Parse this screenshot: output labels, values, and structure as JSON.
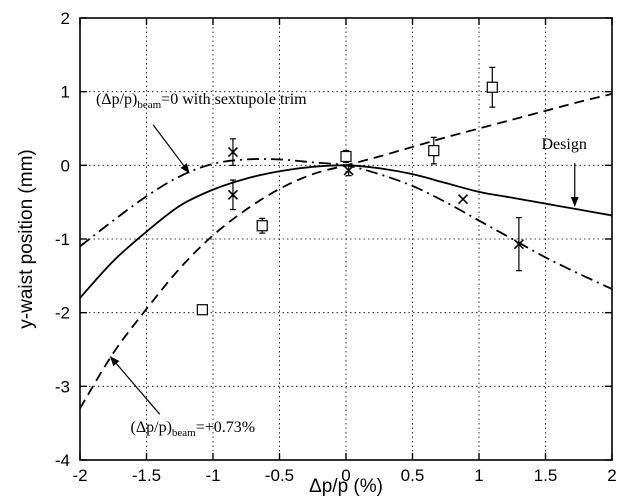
{
  "chart_data": {
    "type": "line",
    "xlabel": "Δp/p (%)",
    "ylabel": "y-waist position (mm)",
    "xlim": [
      -2,
      2
    ],
    "ylim": [
      -4,
      2
    ],
    "xticks": [
      -2,
      -1.5,
      -1,
      -0.5,
      0,
      0.5,
      1,
      1.5,
      2
    ],
    "xtick_labels": [
      "-2",
      "-1.5",
      "-1",
      "-0.5",
      "0",
      "0.5",
      "1",
      "1.5",
      "2"
    ],
    "yticks": [
      -4,
      -3,
      -2,
      -1,
      0,
      1,
      2
    ],
    "ytick_labels": [
      "-4",
      "-3",
      "-2",
      "-1",
      "0",
      "1",
      "2"
    ],
    "grid": true,
    "series": [
      {
        "style": "solid",
        "x": [
          -2,
          -1.75,
          -1.5,
          -1.25,
          -1,
          -0.75,
          -0.5,
          -0.25,
          0,
          0.25,
          0.5,
          0.75,
          1,
          1.25,
          1.5,
          1.75,
          2
        ],
        "y": [
          -1.8,
          -1.3,
          -0.9,
          -0.55,
          -0.33,
          -0.18,
          -0.08,
          -0.02,
          0,
          -0.04,
          -0.12,
          -0.24,
          -0.36,
          -0.44,
          -0.52,
          -0.6,
          -0.68
        ]
      },
      {
        "style": "dashed",
        "x": [
          -2,
          -1.75,
          -1.5,
          -1.25,
          -1,
          -0.75,
          -0.5,
          -0.25,
          0,
          0.25,
          0.5,
          0.75,
          1,
          1.25,
          1.5,
          1.75,
          2
        ],
        "y": [
          -3.3,
          -2.55,
          -1.95,
          -1.4,
          -0.95,
          -0.6,
          -0.32,
          -0.12,
          0,
          0.12,
          0.25,
          0.38,
          0.5,
          0.62,
          0.74,
          0.86,
          0.97
        ]
      },
      {
        "style": "dash-dot",
        "x": [
          -2,
          -1.75,
          -1.5,
          -1.25,
          -1,
          -0.75,
          -0.5,
          -0.25,
          0,
          0.25,
          0.5,
          0.75,
          1,
          1.25,
          1.5,
          1.75,
          2
        ],
        "y": [
          -1.1,
          -0.75,
          -0.42,
          -0.15,
          0.02,
          0.08,
          0.08,
          0.04,
          0,
          -0.12,
          -0.28,
          -0.5,
          -0.75,
          -1.0,
          -1.25,
          -1.47,
          -1.68
        ]
      }
    ],
    "points": [
      {
        "marker": "x",
        "x": -0.85,
        "y": 0.18,
        "err": 0.18
      },
      {
        "marker": "x",
        "x": -0.85,
        "y": -0.4,
        "err": 0.2
      },
      {
        "marker": "x",
        "x": 0.02,
        "y": -0.07,
        "err": 0.07
      },
      {
        "marker": "x",
        "x": 0.88,
        "y": -0.46,
        "err": 0
      },
      {
        "marker": "x",
        "x": 1.3,
        "y": -1.07,
        "err": 0.36
      },
      {
        "marker": "square",
        "x": -1.08,
        "y": -1.96,
        "err": 0
      },
      {
        "marker": "square",
        "x": -0.63,
        "y": -0.82,
        "err": 0.1
      },
      {
        "marker": "square",
        "x": 0.0,
        "y": 0.12,
        "err": 0.08
      },
      {
        "marker": "square",
        "x": 0.66,
        "y": 0.2,
        "err": 0.18
      },
      {
        "marker": "square",
        "x": 1.1,
        "y": 1.06,
        "err": 0.27
      }
    ],
    "annotations": [
      {
        "main": "(Δp/p)",
        "sub": "beam",
        "rest": "=0 with sextupole trim",
        "text_x": -1.88,
        "text_y": 0.83,
        "arrow_from": [
          -1.45,
          0.55
        ],
        "arrow_to": [
          -1.18,
          -0.1
        ]
      },
      {
        "main": "Design",
        "sub": "",
        "rest": "",
        "text_x": 1.47,
        "text_y": 0.22,
        "arrow_from": [
          1.72,
          0.03
        ],
        "arrow_to": [
          1.72,
          -0.55
        ]
      },
      {
        "main": "(Δp/p)",
        "sub": "beam",
        "rest": "=+0.73%",
        "text_x": -1.62,
        "text_y": -3.62,
        "arrow_from": [
          -1.4,
          -3.38
        ],
        "arrow_to": [
          -1.77,
          -2.6
        ]
      }
    ]
  }
}
